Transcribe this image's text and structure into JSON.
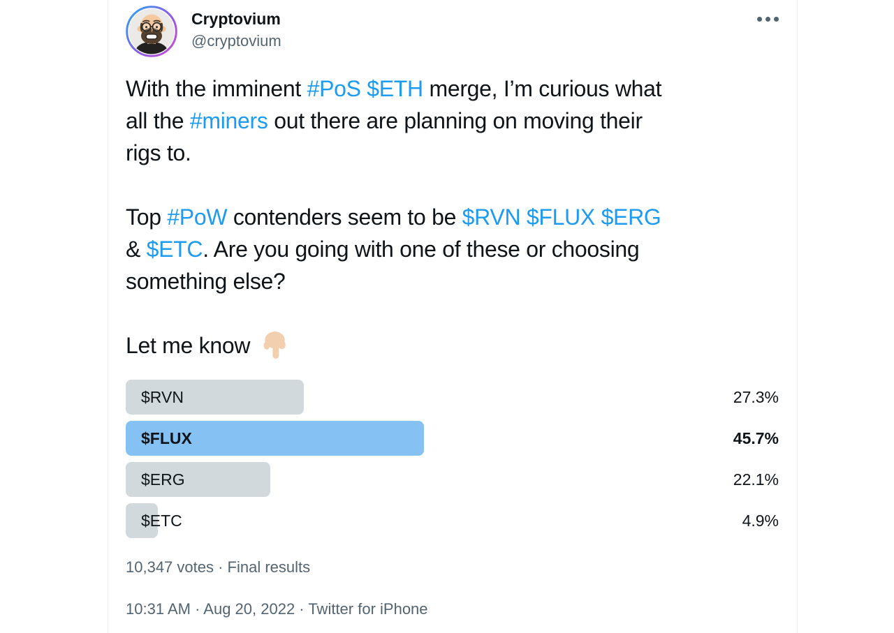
{
  "colors": {
    "text_primary": "#0F1419",
    "text_secondary": "#536471",
    "link": "#1D9BF0",
    "poll_bar": "#D2D9DD",
    "poll_bar_leader": "#85C1F2",
    "card_border": "#EFF1F3",
    "avatar_ring_start": "#2EA3F2",
    "avatar_ring_end": "#C94BD2"
  },
  "icons": {
    "more": "horizontal-ellipsis",
    "emoji": "backhand-index-pointing-down-light-skin-tone"
  },
  "tweet": {
    "author": {
      "name": "Cryptovium",
      "handle": "@cryptovium"
    },
    "body": [
      [
        [
          {
            "text": "With the imminent "
          },
          {
            "text": "#PoS",
            "link": true
          },
          {
            "text": " "
          },
          {
            "text": "$ETH",
            "link": true
          },
          {
            "text": " merge, I’m curious what"
          }
        ],
        [
          {
            "text": "all the "
          },
          {
            "text": "#miners",
            "link": true
          },
          {
            "text": " out there are planning on moving their"
          }
        ],
        [
          {
            "text": "rigs to."
          }
        ]
      ],
      [
        [
          {
            "text": "Top "
          },
          {
            "text": "#PoW",
            "link": true
          },
          {
            "text": " contenders seem to be "
          },
          {
            "text": "$RVN",
            "link": true
          },
          {
            "text": " "
          },
          {
            "text": "$FLUX",
            "link": true
          },
          {
            "text": " "
          },
          {
            "text": "$ERG",
            "link": true
          }
        ],
        [
          {
            "text": "& "
          },
          {
            "text": "$ETC",
            "link": true
          },
          {
            "text": ". Are you going with one of these or choosing"
          }
        ],
        [
          {
            "text": "something else?"
          }
        ]
      ],
      [
        [
          {
            "text": "Let me know "
          },
          {
            "icon": "pointing-down-emoji"
          }
        ]
      ]
    ],
    "poll": {
      "options": [
        {
          "label": "$RVN",
          "pct": 27.3,
          "pct_label": "27.3%",
          "winner": false
        },
        {
          "label": "$FLUX",
          "pct": 45.7,
          "pct_label": "45.7%",
          "winner": true
        },
        {
          "label": "$ERG",
          "pct": 22.1,
          "pct_label": "22.1%",
          "winner": false
        },
        {
          "label": "$ETC",
          "pct": 4.9,
          "pct_label": "4.9%",
          "winner": false
        }
      ],
      "meta": "10,347 votes · Final results"
    },
    "timestamp": "10:31 AM · Aug 20, 2022 · Twitter for iPhone"
  }
}
